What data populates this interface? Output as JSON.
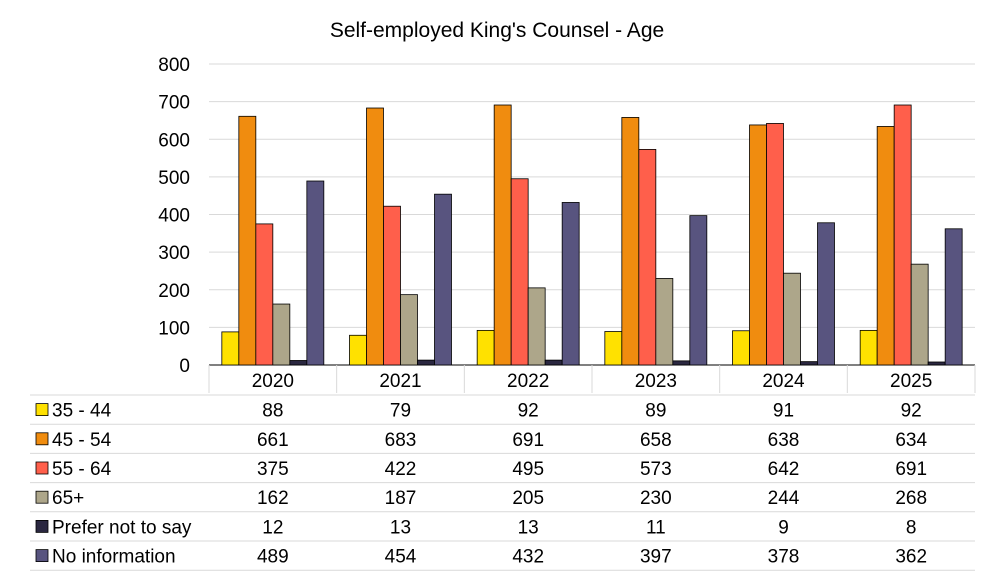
{
  "chart_data": {
    "type": "bar",
    "title": "Self-employed King's Counsel - Age",
    "xlabel": "",
    "ylabel": "",
    "ylim": [
      0,
      800
    ],
    "yticks": [
      0,
      100,
      200,
      300,
      400,
      500,
      600,
      700,
      800
    ],
    "grid": true,
    "legend": "data-table-below",
    "categories": [
      "2020",
      "2021",
      "2022",
      "2023",
      "2024",
      "2025"
    ],
    "series": [
      {
        "name": "35 - 44",
        "color": "#FFE100",
        "values": [
          88,
          79,
          92,
          89,
          91,
          92
        ]
      },
      {
        "name": "45 - 54",
        "color": "#F08C0F",
        "values": [
          661,
          683,
          691,
          658,
          638,
          634
        ]
      },
      {
        "name": "55 - 64",
        "color": "#FF5F4B",
        "values": [
          375,
          422,
          495,
          573,
          642,
          691
        ]
      },
      {
        "name": "65+",
        "color": "#ADA68A",
        "values": [
          162,
          187,
          205,
          230,
          244,
          268
        ]
      },
      {
        "name": "Prefer not to say",
        "color": "#2A2740",
        "values": [
          12,
          13,
          13,
          11,
          9,
          8
        ]
      },
      {
        "name": "No information",
        "color": "#58547F",
        "values": [
          489,
          454,
          432,
          397,
          378,
          362
        ]
      }
    ]
  }
}
